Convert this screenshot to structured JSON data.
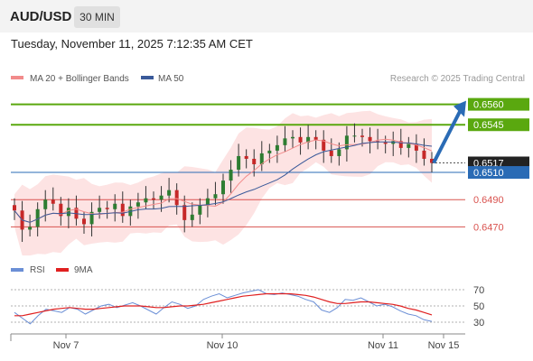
{
  "header": {
    "pair": "AUD/USD",
    "timeframe": "30 MIN",
    "datetime": "Tuesday, November 11, 2025 7:12:35 AM CET"
  },
  "legend": {
    "ma20_label": "MA 20 + Bollinger Bands",
    "ma20_color": "#f28b8b",
    "ma50_label": "MA 50",
    "ma50_color": "#3a5a9a",
    "credit": "Research © 2025 Trading Central"
  },
  "colors": {
    "green": "#5aa80f",
    "blue": "#2a6bb5",
    "red": "#d9534f",
    "band": "#fde3e3",
    "candle_up": "#2e7d32",
    "candle_down": "#c62828"
  },
  "chart_data": [
    {
      "type": "candlestick",
      "title": "AUD/USD 30 MIN",
      "x_ticks": [
        "Nov 7",
        "Nov 10",
        "Nov 11",
        "Nov 15"
      ],
      "ylim": [
        0.6459,
        0.6573
      ],
      "levels": [
        {
          "value": 0.656,
          "label": "0.6560",
          "kind": "resistance",
          "color": "#5aa80f"
        },
        {
          "value": 0.6545,
          "label": "0.6545",
          "kind": "resistance",
          "color": "#5aa80f"
        },
        {
          "value": 0.6517,
          "label": "0.6517",
          "kind": "last-price",
          "color": "#222222"
        },
        {
          "value": 0.651,
          "label": "0.6510",
          "kind": "pivot",
          "color": "#2a6bb5"
        },
        {
          "value": 0.649,
          "label": "0.6490",
          "kind": "support",
          "color": "#d9534f"
        },
        {
          "value": 0.647,
          "label": "0.6470",
          "kind": "support",
          "color": "#d9534f"
        }
      ],
      "close_path": [
        0.6482,
        0.6468,
        0.647,
        0.6483,
        0.649,
        0.6487,
        0.6478,
        0.6484,
        0.6476,
        0.6472,
        0.6481,
        0.6484,
        0.6483,
        0.6487,
        0.6478,
        0.6485,
        0.6488,
        0.6491,
        0.649,
        0.6493,
        0.6497,
        0.6486,
        0.6475,
        0.6479,
        0.6486,
        0.6491,
        0.6494,
        0.6504,
        0.6512,
        0.6522,
        0.652,
        0.6516,
        0.6524,
        0.6526,
        0.653,
        0.6535,
        0.6536,
        0.6532,
        0.6536,
        0.6534,
        0.6526,
        0.6522,
        0.6527,
        0.6537,
        0.6537,
        0.6536,
        0.6533,
        0.6532,
        0.6531,
        0.6533,
        0.6528,
        0.6531,
        0.6526,
        0.652,
        0.6517
      ],
      "forecast_arrow": {
        "from": 0.6517,
        "to": 0.656
      }
    },
    {
      "type": "line",
      "title": "RSI",
      "series": [
        {
          "name": "RSI",
          "color": "#6b8fd6"
        },
        {
          "name": "9MA",
          "color": "#e02020"
        }
      ],
      "yticks": [
        70,
        50,
        30
      ],
      "ylim": [
        20,
        80
      ],
      "rsi": [
        42,
        35,
        28,
        38,
        46,
        44,
        42,
        48,
        46,
        40,
        45,
        50,
        52,
        48,
        51,
        54,
        50,
        45,
        40,
        48,
        55,
        52,
        47,
        50,
        58,
        62,
        65,
        60,
        63,
        66,
        68,
        70,
        65,
        64,
        66,
        64,
        62,
        58,
        55,
        45,
        42,
        48,
        58,
        57,
        60,
        55,
        50,
        52,
        49,
        44,
        40,
        38,
        33,
        31
      ],
      "rsi_ma": [
        38,
        38,
        40,
        42,
        44,
        46,
        47,
        48,
        47,
        46,
        46,
        47,
        48,
        49,
        50,
        50,
        50,
        49,
        48,
        48,
        49,
        50,
        50,
        51,
        52,
        54,
        56,
        58,
        60,
        62,
        63,
        64,
        65,
        65,
        65,
        65,
        64,
        63,
        61,
        58,
        55,
        53,
        53,
        54,
        55,
        55,
        54,
        53,
        52,
        50,
        47,
        45,
        42,
        39
      ]
    }
  ]
}
